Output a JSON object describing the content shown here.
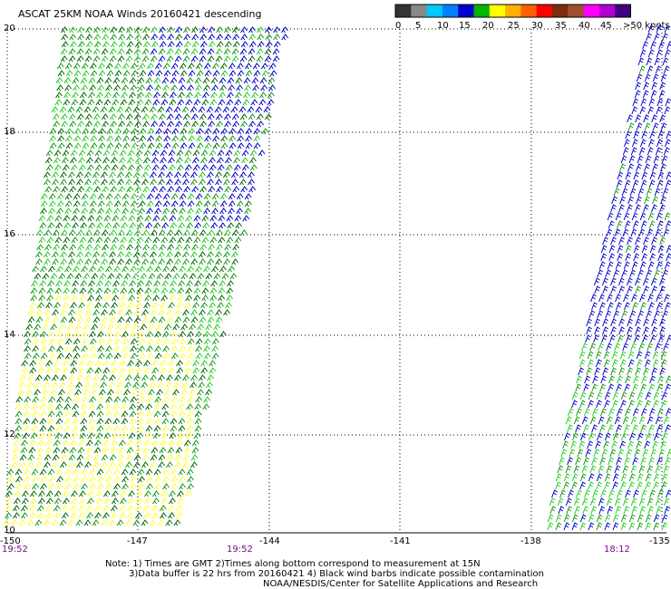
{
  "title": "ASCAT 25KM NOAA Winds 20160421 descending",
  "colorbar": {
    "ticks": [
      "0",
      "5",
      "10",
      "15",
      "20",
      "25",
      "30",
      "35",
      "40",
      "45",
      ">50 knots"
    ],
    "colors": [
      "#333333",
      "#888888",
      "#00c8ff",
      "#0080ff",
      "#0000d0",
      "#00b400",
      "#ffff00",
      "#ffb000",
      "#ff6000",
      "#ff0000",
      "#7a2e10",
      "#a05030",
      "#ff00ff",
      "#b000d0",
      "#400080"
    ]
  },
  "axes": {
    "lat_labels": [
      "20",
      "18",
      "16",
      "14",
      "12",
      "10"
    ],
    "lon_labels": [
      "-150",
      "-147",
      "-144",
      "-141",
      "-138",
      "-135"
    ],
    "lat_range": [
      10,
      20
    ],
    "lon_range": [
      -150,
      -135
    ]
  },
  "swaths": [
    {
      "name": "western",
      "time_start": "19:52",
      "time_end": "19:52"
    },
    {
      "name": "eastern",
      "time": "18:12"
    }
  ],
  "notes": {
    "line1": "Note: 1) Times are GMT 2)Times along bottom correspond to measurement at 15N",
    "line2": "3)Data buffer is 22 hrs from 20160421 4) Black wind barbs indicate possible contamination",
    "line3": "NOAA/NESDIS/Center for Satellite Applications and Research"
  },
  "barb_colors": {
    "blue": "#0000c8",
    "green_light": "#22cc22",
    "green": "#119911",
    "green_dark": "#006600",
    "yellow": "#ffff33"
  }
}
